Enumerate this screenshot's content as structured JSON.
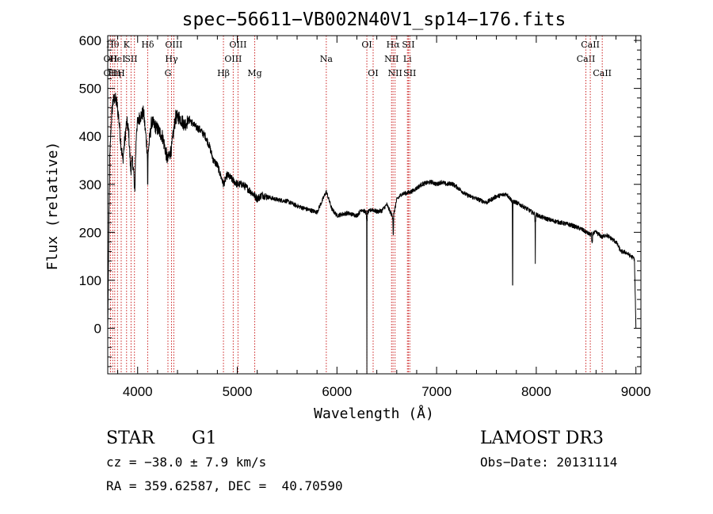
{
  "chart_data": {
    "type": "line",
    "title": "spec−56611−VB002N40V1_sp14−176.fits",
    "xlabel": "Wavelength (Å)",
    "ylabel": "Flux (relative)",
    "xlim": [
      3700,
      9050
    ],
    "ylim": [
      -95,
      610
    ],
    "x_ticks": [
      4000,
      5000,
      6000,
      7000,
      8000,
      9000
    ],
    "y_ticks": [
      0,
      100,
      200,
      300,
      400,
      500,
      600
    ],
    "grid": false,
    "line_color": "#000000",
    "marker_color": "#cc2222",
    "spectrum_anchors": [
      [
        3700,
        0
      ],
      [
        3710,
        190
      ],
      [
        3720,
        350
      ],
      [
        3735,
        430
      ],
      [
        3750,
        470
      ],
      [
        3770,
        480
      ],
      [
        3790,
        470
      ],
      [
        3810,
        440
      ],
      [
        3830,
        390
      ],
      [
        3850,
        350
      ],
      [
        3870,
        390
      ],
      [
        3890,
        430
      ],
      [
        3910,
        410
      ],
      [
        3930,
        330
      ],
      [
        3950,
        350
      ],
      [
        3970,
        300
      ],
      [
        3990,
        420
      ],
      [
        4020,
        440
      ],
      [
        4060,
        450
      ],
      [
        4101,
        360
      ],
      [
        4140,
        430
      ],
      [
        4200,
        415
      ],
      [
        4250,
        400
      ],
      [
        4300,
        350
      ],
      [
        4340,
        375
      ],
      [
        4380,
        440
      ],
      [
        4420,
        440
      ],
      [
        4470,
        425
      ],
      [
        4520,
        435
      ],
      [
        4580,
        420
      ],
      [
        4620,
        415
      ],
      [
        4680,
        400
      ],
      [
        4720,
        380
      ],
      [
        4760,
        350
      ],
      [
        4800,
        340
      ],
      [
        4861,
        300
      ],
      [
        4900,
        320
      ],
      [
        4950,
        310
      ],
      [
        5000,
        300
      ],
      [
        5050,
        300
      ],
      [
        5100,
        292
      ],
      [
        5150,
        282
      ],
      [
        5200,
        270
      ],
      [
        5250,
        278
      ],
      [
        5300,
        274
      ],
      [
        5400,
        268
      ],
      [
        5500,
        265
      ],
      [
        5600,
        255
      ],
      [
        5700,
        248
      ],
      [
        5800,
        242
      ],
      [
        5893,
        285
      ],
      [
        5950,
        248
      ],
      [
        6000,
        235
      ],
      [
        6100,
        240
      ],
      [
        6200,
        235
      ],
      [
        6250,
        248
      ],
      [
        6300,
        240
      ],
      [
        6350,
        248
      ],
      [
        6400,
        243
      ],
      [
        6450,
        245
      ],
      [
        6500,
        258
      ],
      [
        6563,
        230
      ],
      [
        6600,
        268
      ],
      [
        6650,
        280
      ],
      [
        6700,
        282
      ],
      [
        6750,
        285
      ],
      [
        6800,
        292
      ],
      [
        6850,
        300
      ],
      [
        6900,
        303
      ],
      [
        6950,
        305
      ],
      [
        7000,
        300
      ],
      [
        7050,
        305
      ],
      [
        7100,
        300
      ],
      [
        7150,
        302
      ],
      [
        7200,
        295
      ],
      [
        7300,
        278
      ],
      [
        7400,
        270
      ],
      [
        7500,
        262
      ],
      [
        7600,
        275
      ],
      [
        7700,
        280
      ],
      [
        7760,
        265
      ],
      [
        7800,
        262
      ],
      [
        7900,
        250
      ],
      [
        7970,
        240
      ],
      [
        8050,
        232
      ],
      [
        8150,
        225
      ],
      [
        8250,
        220
      ],
      [
        8350,
        215
      ],
      [
        8450,
        207
      ],
      [
        8542,
        195
      ],
      [
        8600,
        200
      ],
      [
        8662,
        190
      ],
      [
        8700,
        195
      ],
      [
        8800,
        180
      ],
      [
        8850,
        160
      ],
      [
        8900,
        158
      ],
      [
        8950,
        150
      ],
      [
        8985,
        145
      ],
      [
        9000,
        0
      ]
    ],
    "absorption_spikes": [
      {
        "x": 6300,
        "y": -95
      },
      {
        "x": 6565,
        "y": 195
      },
      {
        "x": 7763,
        "y": 90
      },
      {
        "x": 7990,
        "y": 135
      },
      {
        "x": 8560,
        "y": 178
      },
      {
        "x": 4101,
        "y": 300
      },
      {
        "x": 3970,
        "y": 295
      }
    ],
    "line_markers": [
      {
        "x": 3727,
        "label": "OII",
        "row": 1
      },
      {
        "x": 3727,
        "label": "OII",
        "row": 2
      },
      {
        "x": 3750,
        "label": "Hθ",
        "row": 0
      },
      {
        "x": 3770,
        "label": "Hη",
        "row": 2
      },
      {
        "x": 3798,
        "label": "HeI",
        "row": 1
      },
      {
        "x": 3835,
        "label": "H",
        "row": 2
      },
      {
        "x": 3889,
        "label": "K",
        "row": 0
      },
      {
        "x": 3934,
        "label": "SII",
        "row": 1
      },
      {
        "x": 3968,
        "label": "",
        "row": -1
      },
      {
        "x": 4101,
        "label": "Hδ",
        "row": 0
      },
      {
        "x": 4304,
        "label": "G",
        "row": 2
      },
      {
        "x": 4340,
        "label": "Hγ",
        "row": 1
      },
      {
        "x": 4363,
        "label": "OIII",
        "row": 0
      },
      {
        "x": 4861,
        "label": "Hβ",
        "row": 2
      },
      {
        "x": 4959,
        "label": "OIII",
        "row": 1
      },
      {
        "x": 5007,
        "label": "OIII",
        "row": 0
      },
      {
        "x": 5175,
        "label": "Mg",
        "row": 2
      },
      {
        "x": 5893,
        "label": "Na",
        "row": 1
      },
      {
        "x": 6300,
        "label": "OI",
        "row": 0
      },
      {
        "x": 6363,
        "label": "OI",
        "row": 2
      },
      {
        "x": 6548,
        "label": "NII",
        "row": 1
      },
      {
        "x": 6563,
        "label": "Hα",
        "row": 0
      },
      {
        "x": 6583,
        "label": "NII",
        "row": 2
      },
      {
        "x": 6707,
        "label": "Li",
        "row": 1
      },
      {
        "x": 6717,
        "label": "SII",
        "row": 0
      },
      {
        "x": 6731,
        "label": "SII",
        "row": 2
      },
      {
        "x": 8498,
        "label": "CaII",
        "row": 1
      },
      {
        "x": 8542,
        "label": "CaII",
        "row": 0
      },
      {
        "x": 8662,
        "label": "CaII",
        "row": 2
      }
    ]
  },
  "info": {
    "class_label": "STAR",
    "subclass": "G1",
    "redshift": "cz = −38.0 ± 7.9 km/s",
    "coords": "RA = 359.62587, DEC =  40.70590",
    "survey": "LAMOST DR3",
    "obs_date": "Obs−Date: 20131114"
  }
}
